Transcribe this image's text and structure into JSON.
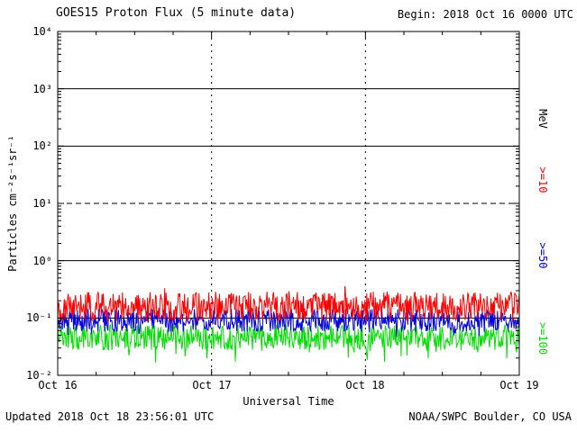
{
  "header": {
    "title": "GOES15 Proton Flux (5 minute data)",
    "begin_label": "Begin: 2018 Oct 16 0000 UTC"
  },
  "footer": {
    "updated": "Updated 2018 Oct 18 23:56:01 UTC",
    "credit": "NOAA/SWPC Boulder, CO USA"
  },
  "chart_data": {
    "type": "line",
    "title": "GOES15 Proton Flux (5 minute data)",
    "xlabel": "Universal Time",
    "ylabel": "Particles cm⁻²s⁻¹sr⁻¹",
    "right_axis_label": "MeV",
    "x_tick_labels": [
      "Oct 16",
      "Oct 17",
      "Oct 18",
      "Oct 19"
    ],
    "x_days": 3,
    "x_range": "2018 Oct 16 0000 UTC to 2018 Oct 19 0000 UTC",
    "ylim_log10": [
      -2,
      4
    ],
    "y_scale": "log",
    "y_tick_labels": [
      "10⁴",
      "10³",
      "10²",
      "10¹",
      "10⁰",
      "10⁻¹",
      "10⁻²"
    ],
    "grid": {
      "solid_hlines_log10": [
        3,
        2,
        0,
        -1
      ],
      "dashed_hlines_log10": [
        1
      ],
      "dashed_vlines_day": [
        1,
        2
      ]
    },
    "series": [
      {
        "name": "protons-ge-10-MeV",
        "label": ">=10",
        "color": "#ff0000",
        "log10_center": -0.8,
        "log10_spread": 0.26,
        "spike_up_p": 0.05,
        "spike_up_amp": 0.16,
        "spike_down_p": 0.0,
        "spike_down_amp": 0,
        "points": 700,
        "seed": 101,
        "approx_flux_range": [
          0.09,
          0.4
        ]
      },
      {
        "name": "protons-ge-50-MeV",
        "label": ">=50",
        "color": "#0000dd",
        "log10_center": -1.04,
        "log10_spread": 0.2,
        "spike_up_p": 0.02,
        "spike_up_amp": 0.08,
        "spike_down_p": 0.04,
        "spike_down_amp": 0.12,
        "points": 700,
        "seed": 202,
        "approx_flux_range": [
          0.05,
          0.17
        ]
      },
      {
        "name": "protons-ge-100-MeV",
        "label": ">=100",
        "color": "#00dd00",
        "log10_center": -1.34,
        "log10_spread": 0.22,
        "spike_up_p": 0.0,
        "spike_up_amp": 0,
        "spike_down_p": 0.12,
        "spike_down_amp": 0.25,
        "points": 700,
        "seed": 303,
        "approx_flux_range": [
          0.02,
          0.09
        ]
      }
    ]
  }
}
